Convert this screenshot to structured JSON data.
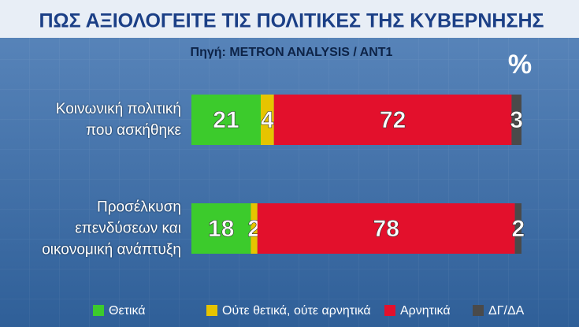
{
  "chart_data": {
    "type": "stacked-bar-horizontal",
    "title": "ΠΩΣ ΑΞΙΟΛΟΓΕΙΤΕ ΤΙΣ ΠΟΛΙΤΙΚΕΣ ΤΗΣ ΚΥΒΕΡΝΗΣΗΣ",
    "subtitle": "Πηγή: METRON ANALYSIS / ANT1",
    "unit": "%",
    "categories": [
      "Κοινωνική πολιτική\nπου ασκήθηκε",
      "Προσέλκυση\nεπενδύσεων και\nοικονομική ανάπτυξη"
    ],
    "series": [
      {
        "name": "Θετικά",
        "color": "#3ccb2c",
        "values": [
          21,
          18
        ]
      },
      {
        "name": "Ούτε θετικά, ούτε αρνητικά",
        "color": "#e6c400",
        "values": [
          4,
          2
        ]
      },
      {
        "name": "Αρνητικά",
        "color": "#e3102c",
        "values": [
          72,
          78
        ]
      },
      {
        "name": "ΔΓ/ΔΑ",
        "color": "#4a4a4a",
        "values": [
          3,
          2
        ]
      }
    ],
    "xlim": [
      0,
      100
    ]
  }
}
